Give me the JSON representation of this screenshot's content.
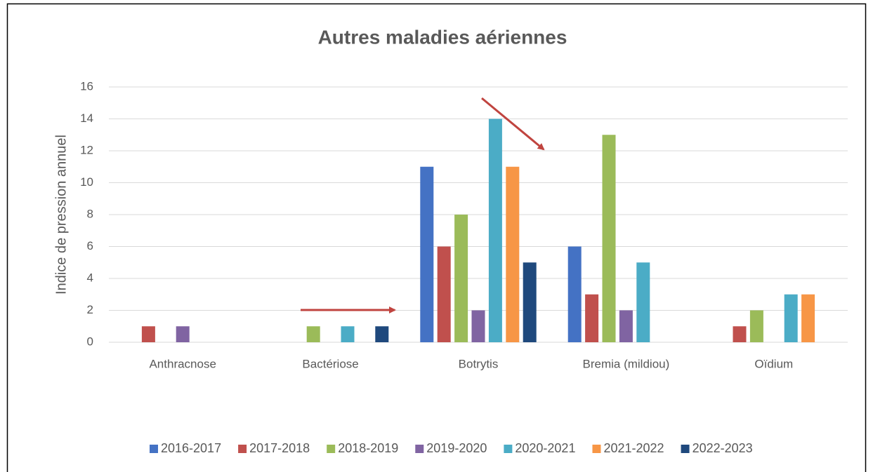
{
  "chart_data": {
    "type": "bar",
    "title": "Autres maladies aériennes",
    "y_label": "Indice de pression annuel",
    "categories": [
      "Anthracnose",
      "Bactériose",
      "Botrytis",
      "Bremia (mildiou)",
      "Oïdium"
    ],
    "series": [
      {
        "name": "2016-2017",
        "color": "#4472c4",
        "values": [
          0,
          0,
          11,
          6,
          0
        ]
      },
      {
        "name": "2017-2018",
        "color": "#c0504d",
        "values": [
          1,
          0,
          6,
          3,
          1
        ]
      },
      {
        "name": "2018-2019",
        "color": "#9bbb59",
        "values": [
          0,
          1,
          8,
          13,
          2
        ]
      },
      {
        "name": "2019-2020",
        "color": "#8064a2",
        "values": [
          1,
          0,
          2,
          2,
          0
        ]
      },
      {
        "name": "2020-2021",
        "color": "#4bacc6",
        "values": [
          0,
          1,
          14,
          5,
          3
        ]
      },
      {
        "name": "2021-2022",
        "color": "#f79646",
        "values": [
          0,
          0,
          11,
          0,
          3
        ]
      },
      {
        "name": "2022-2023",
        "color": "#1f497d",
        "values": [
          0,
          1,
          5,
          0,
          0
        ]
      }
    ],
    "ylim": [
      0,
      16
    ],
    "yticks": [
      0,
      2,
      4,
      6,
      8,
      10,
      12,
      14,
      16
    ],
    "grid": true,
    "legend": "bottom"
  }
}
